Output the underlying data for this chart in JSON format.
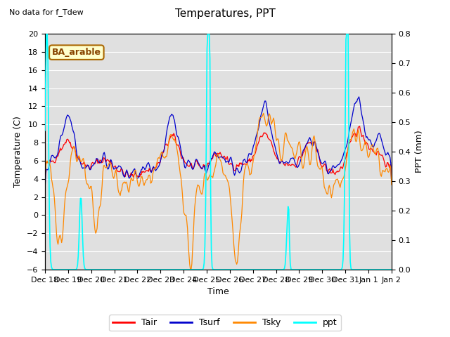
{
  "title": "Temperatures, PPT",
  "note": "No data for f_Tdew",
  "legend_label": "BA_arable",
  "xlabel": "Time",
  "ylabel_left": "Temperature (C)",
  "ylabel_right": "PPT (mm)",
  "ylim_left": [
    -6,
    20
  ],
  "ylim_right": [
    0.0,
    0.8
  ],
  "yticks_left": [
    -6,
    -4,
    -2,
    0,
    2,
    4,
    6,
    8,
    10,
    12,
    14,
    16,
    18,
    20
  ],
  "yticks_right": [
    0.0,
    0.1,
    0.2,
    0.3,
    0.4,
    0.5,
    0.6,
    0.7,
    0.8
  ],
  "xtick_labels": [
    "Dec 18",
    "Dec 19",
    "Dec 20",
    "Dec 21",
    "Dec 22",
    "Dec 23",
    "Dec 24",
    "Dec 25",
    "Dec 26",
    "Dec 27",
    "Dec 28",
    "Dec 29",
    "Dec 30",
    "Dec 31",
    "Jan 1",
    "Jan 2"
  ],
  "colors": {
    "Tair": "#ff0000",
    "Tsurf": "#0000cc",
    "Tsky": "#ff8800",
    "ppt": "#00ffff",
    "plot_bg": "#e0e0e0"
  },
  "n_points": 480,
  "n_days": 15
}
